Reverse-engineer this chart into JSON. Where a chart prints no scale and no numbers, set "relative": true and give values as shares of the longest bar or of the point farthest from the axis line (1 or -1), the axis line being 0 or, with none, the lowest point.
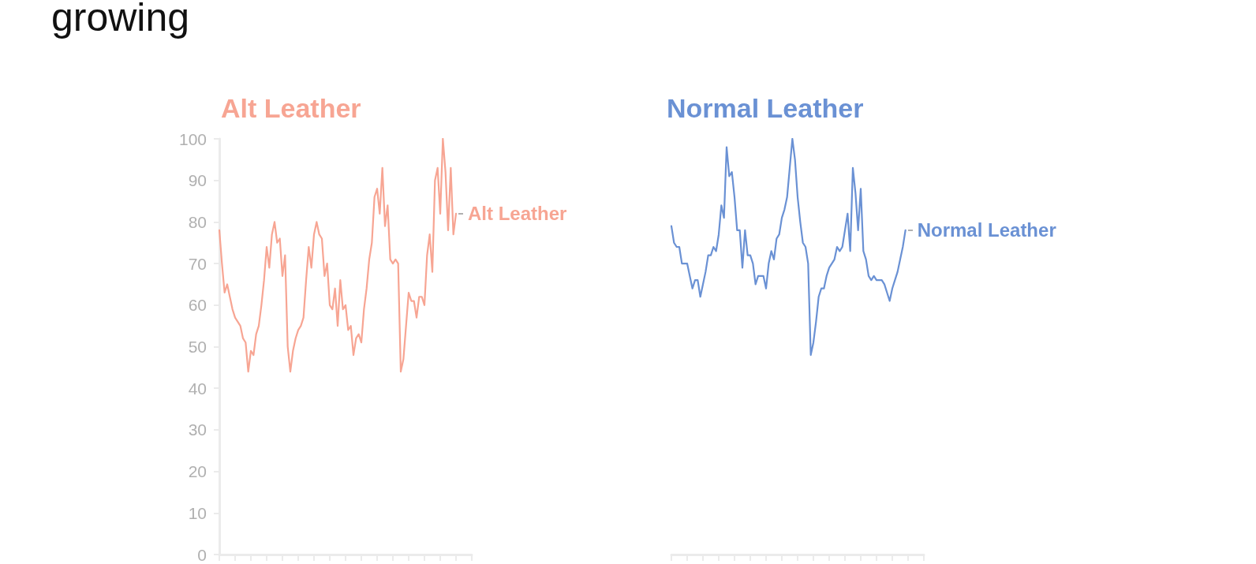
{
  "chart_data": [
    {
      "type": "line",
      "title": "Alt Leather",
      "annotations": [
        "growing"
      ],
      "categories": [
        null,
        null,
        null,
        null,
        null,
        null,
        null,
        null,
        null,
        null,
        null,
        null,
        null,
        null,
        null,
        null,
        null,
        null,
        null,
        null,
        null,
        null,
        null,
        null,
        null,
        null,
        null,
        null,
        null,
        null,
        null,
        null,
        null,
        null,
        null,
        null,
        null,
        null,
        null,
        null,
        null,
        null,
        null,
        null,
        null,
        null,
        null,
        null,
        null,
        null,
        null,
        null,
        null,
        null,
        null,
        null,
        null,
        null,
        null,
        null,
        null,
        null,
        null,
        null,
        null,
        null,
        null,
        null,
        null,
        null,
        null,
        null,
        null,
        null,
        null,
        null,
        null,
        null,
        null,
        null,
        null,
        null,
        null,
        null,
        null,
        null,
        null,
        null,
        null,
        null,
        null,
        null,
        null,
        null,
        null,
        null,
        null
      ],
      "series": [
        {
          "name": "Alt Leather",
          "color": "#f7a593",
          "values": [
            78,
            70,
            63,
            65,
            62,
            59,
            57,
            56,
            55,
            52,
            51,
            44,
            49,
            48,
            53,
            55,
            60,
            66,
            74,
            69,
            77,
            80,
            75,
            76,
            67,
            72,
            50,
            44,
            49,
            52,
            54,
            55,
            57,
            66,
            74,
            69,
            77,
            80,
            77,
            76,
            67,
            70,
            60,
            59,
            64,
            55,
            66,
            59,
            60,
            54,
            55,
            48,
            52,
            53,
            51,
            59,
            64,
            71,
            75,
            86,
            88,
            82,
            93,
            79,
            84,
            71,
            70,
            71,
            70,
            44,
            47,
            55,
            63,
            61,
            61,
            57,
            62,
            62,
            60,
            72,
            77,
            68,
            90,
            93,
            82,
            100,
            92,
            78,
            93,
            77,
            82,
            null,
            null,
            null,
            null,
            null,
            null
          ]
        }
      ],
      "ylim": [
        0,
        100
      ],
      "yticks": [
        0,
        10,
        20,
        30,
        40,
        50,
        60,
        70,
        80,
        90,
        100
      ],
      "tick_labels": "y",
      "grid": false,
      "legend": false,
      "marker": "none",
      "line_style": "solid"
    },
    {
      "type": "line",
      "title": "Normal Leather",
      "relative": true,
      "categories": [
        null,
        null,
        null,
        null,
        null,
        null,
        null,
        null,
        null,
        null,
        null,
        null,
        null,
        null,
        null,
        null,
        null,
        null,
        null,
        null,
        null,
        null,
        null,
        null,
        null,
        null,
        null,
        null,
        null,
        null,
        null,
        null,
        null,
        null,
        null,
        null,
        null,
        null,
        null,
        null,
        null,
        null,
        null,
        null,
        null,
        null,
        null,
        null,
        null,
        null,
        null,
        null,
        null,
        null,
        null,
        null,
        null,
        null,
        null,
        null,
        null,
        null,
        null,
        null,
        null,
        null,
        null,
        null,
        null,
        null,
        null,
        null,
        null,
        null,
        null,
        null,
        null,
        null,
        null,
        null,
        null,
        null,
        null,
        null,
        null,
        null,
        null,
        null,
        null,
        null,
        null,
        null,
        null,
        null,
        null,
        null,
        null
      ],
      "series": [
        {
          "name": "Normal Leather",
          "color": "#6a91d4",
          "values": [
            0.79,
            0.75,
            0.74,
            0.74,
            0.7,
            0.7,
            0.7,
            0.67,
            0.64,
            0.66,
            0.66,
            0.62,
            0.65,
            0.68,
            0.72,
            0.72,
            0.74,
            0.73,
            0.77,
            0.84,
            0.81,
            0.98,
            0.91,
            0.92,
            0.86,
            0.78,
            0.78,
            0.69,
            0.78,
            0.72,
            0.72,
            0.7,
            0.65,
            0.67,
            0.67,
            0.67,
            0.64,
            0.7,
            0.73,
            0.71,
            0.76,
            0.77,
            0.81,
            0.83,
            0.86,
            0.93,
            1,
            0.95,
            0.86,
            0.8,
            0.75,
            0.74,
            0.7,
            0.48,
            0.51,
            0.56,
            0.62,
            0.64,
            0.64,
            0.67,
            0.69,
            0.7,
            0.71,
            0.74,
            0.73,
            0.74,
            0.78,
            0.82,
            0.73,
            0.93,
            0.87,
            0.78,
            0.88,
            0.73,
            0.71,
            0.67,
            0.66,
            0.67,
            0.66,
            0.66,
            0.66,
            0.65,
            0.63,
            0.61,
            0.64,
            0.66,
            0.68,
            0.71,
            0.74,
            0.78,
            null,
            null,
            null,
            null,
            null,
            null,
            null
          ]
        }
      ],
      "tick_labels": false,
      "grid": false,
      "legend": false,
      "marker": "none",
      "line_style": "solid"
    }
  ]
}
